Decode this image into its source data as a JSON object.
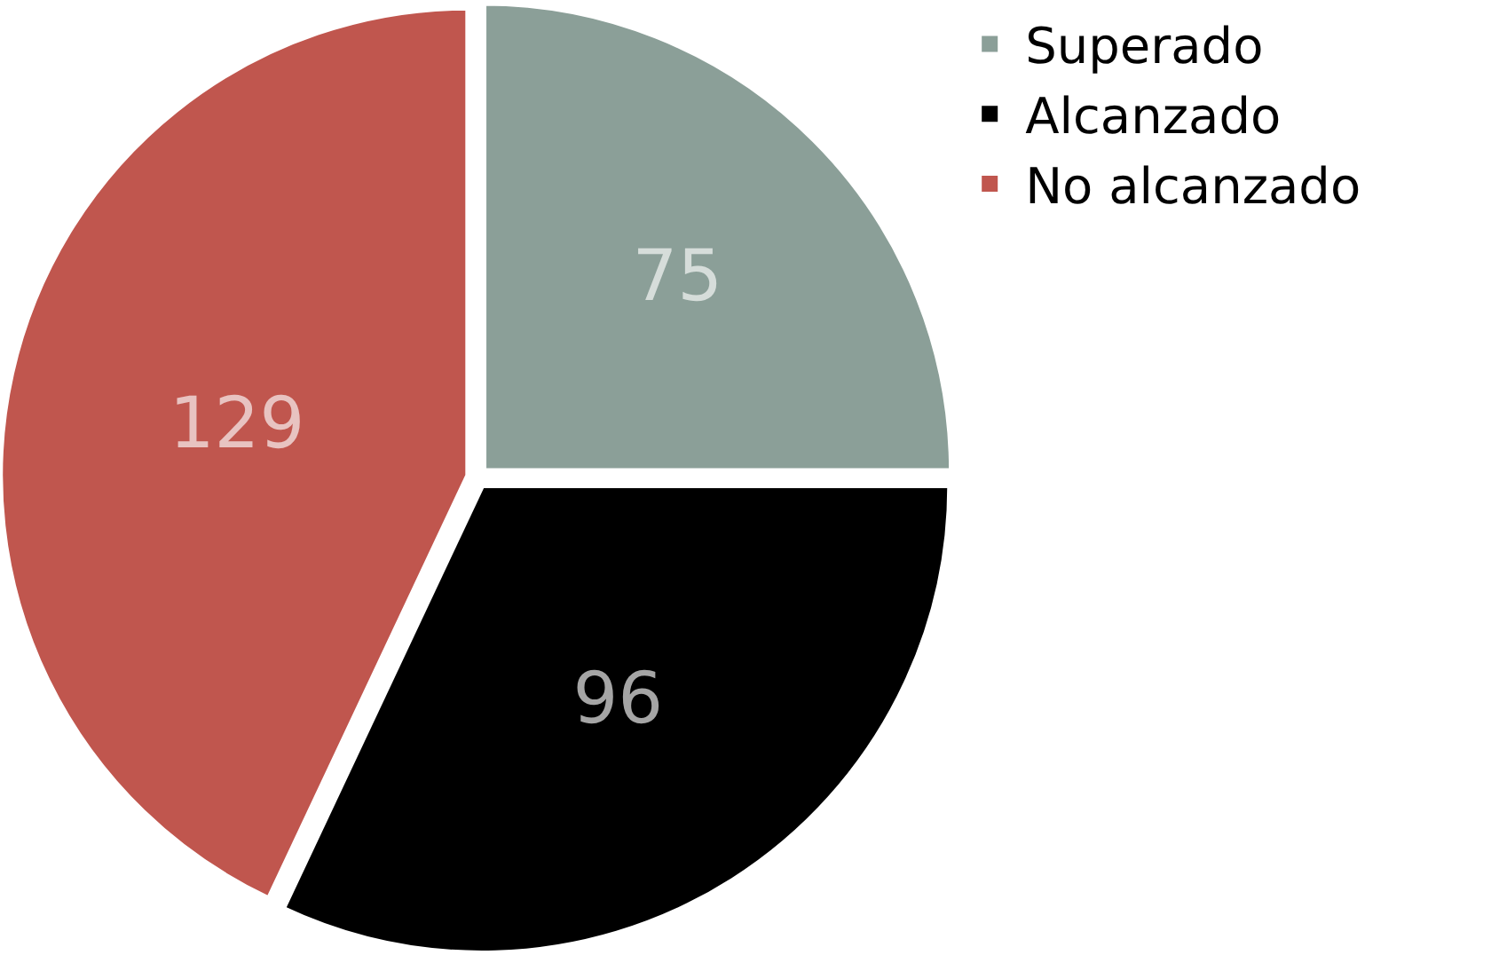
{
  "chart_data": {
    "type": "pie",
    "categories": [
      "Superado",
      "Alcanzado",
      "No alcanzado"
    ],
    "values": [
      75,
      96,
      129
    ],
    "colors": [
      "#8b9f98",
      "#000000",
      "#c0564e"
    ],
    "data_labels": true,
    "legend": "top right"
  }
}
